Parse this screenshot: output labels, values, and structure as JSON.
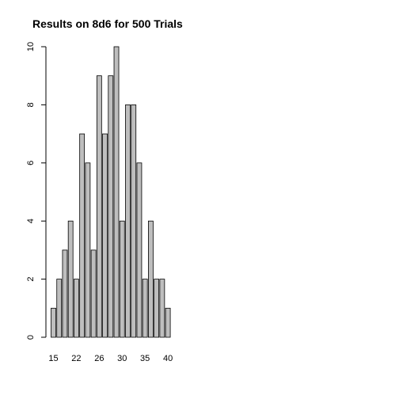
{
  "chart_data": {
    "type": "bar",
    "title": "Results on 8d6 for 500 Trials",
    "categories": [
      "15",
      null,
      null,
      null,
      "22",
      null,
      null,
      null,
      "26",
      null,
      null,
      null,
      "30",
      null,
      null,
      null,
      "35",
      null,
      null,
      null,
      "40"
    ],
    "values": [
      1,
      2,
      3,
      4,
      2,
      7,
      6,
      3,
      9,
      7,
      9,
      10,
      4,
      8,
      8,
      6,
      2,
      4,
      2,
      2,
      1
    ],
    "color": "#bebebe",
    "ylim": [
      0,
      10
    ],
    "yticks": [
      0,
      2,
      4,
      6,
      8,
      10
    ],
    "grid": false
  }
}
